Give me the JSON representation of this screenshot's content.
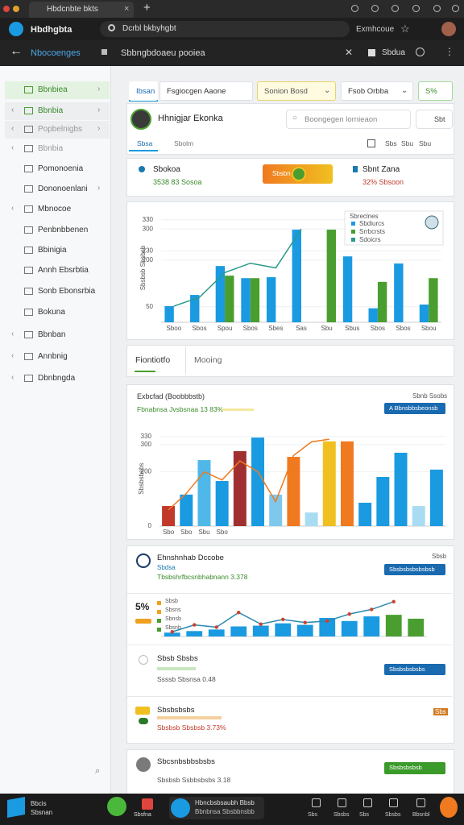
{
  "tab": {
    "title": "Hbdcnbte bkts"
  },
  "toolbar": {
    "app": "Hbdhgbta",
    "url": "Dcrbl bkbyhgbt",
    "profile": "Exmhcoue"
  },
  "header": {
    "title": "Nbocoenges",
    "breadcrumb": "Sbbngbdoaeu pooiea",
    "action": "Sbdua"
  },
  "sidebar": [
    "Bbnbiea",
    "Bbnbia",
    "Popbelnigbs",
    "Bbnbia",
    "Pomonoenia",
    "Dononoenlani",
    "Mbnocoe",
    "Penbnbbenen",
    "Bbinigia",
    "Annh Ebsrbtia",
    "Sonb Ebonsrbia",
    "Bokuna",
    "Bbnban",
    "Annbnig",
    "Dbnbngda"
  ],
  "filters": {
    "tab": "Ibsan",
    "view": "Fsgiocgen Aaone",
    "period": "Sonion Bosd",
    "range": "Fsob Orbba",
    "badge": "S%"
  },
  "profile": {
    "name": "Hhnigjar Ekonka",
    "search": "Boongegen lornieaon",
    "button": "Sbt",
    "tabs": [
      "Sbsa",
      "Sbolm"
    ],
    "tools": [
      "Sbs",
      "Sbu",
      "Sbu"
    ]
  },
  "kpis": [
    {
      "label": "Sbokoa",
      "detail": "3538 83 Sosoa",
      "button": "Sbsbn"
    },
    {
      "label": "Sbnt Zana",
      "detail": "32% Sbsoon"
    }
  ],
  "section_tabs": [
    "Fiontiotfo",
    "Mooing"
  ],
  "panels": [
    {
      "title": "Exbcfad (Boobbbstb)",
      "subtitle": "Fbnabnsa Jvsbsnaa 13 83%",
      "button": "A Bbnsbbsbeonsb",
      "corner": "Sbnb Ssobs"
    },
    {
      "title": "Ehnshnhab Dccobe",
      "subtitle": "Sbdsa",
      "detail": "Tbsbshrfbcsnbhabnann 3.378",
      "button": "Sbsbsbsbsbsbsb",
      "corner": "Sbsb",
      "big": "5%",
      "legend": [
        {
          "label": "Sbsb",
          "color": "#f0a020"
        },
        {
          "label": "Sbsns",
          "color": "#f0a020"
        },
        {
          "label": "Sbnsb",
          "color": "#4a9e2f"
        },
        {
          "label": "Sbsnb",
          "color": "#4a9e2f"
        }
      ]
    },
    {
      "title": "Sbsb Sbsbs",
      "detail": "Ssssb Sbsnsa 0.48",
      "button": "Sbsbsbsbsbs"
    },
    {
      "title": "Sbsbsbsbs",
      "detail": "Sbsbsb Sbsbsb 3.73%",
      "corner": "Sbs"
    },
    {
      "title": "Sbcsnbsbbsbsbs",
      "detail": "Sbsbsb Ssbbsbsbs 3.18",
      "button": "Sbsbsbsbsb"
    }
  ],
  "taskbar": {
    "start": "Bbcis Sbsnan",
    "apps": [
      "Sbsfna",
      "Hbncbsbsaubh Bbsb",
      "Bbnbnsa Sbsbbnsbb"
    ],
    "items": [
      "Sbs",
      "Sbsbs",
      "Sbs",
      "Sbsbs",
      "Bbsnbl"
    ]
  },
  "chart_data": [
    {
      "type": "bar",
      "categories": [
        "Sboo",
        "Sbos",
        "Spou",
        "Sbos",
        "Sbes",
        "Sas",
        "Sbu",
        "Sbus",
        "Sbos",
        "Sbos",
        "Sbou"
      ],
      "ylim": [
        0,
        350
      ],
      "yticks": [
        50,
        200,
        230,
        300,
        330
      ],
      "y_label": "Sbsbsb Sbsbsb",
      "legend": "top-right",
      "legend_title": "Sbreclnes",
      "series": [
        {
          "name": "Sbdiurcs",
          "color": "#1a9ae0",
          "values": [
            52,
            88,
            181,
            142,
            145,
            298,
            null,
            212,
            45,
            189,
            57
          ]
        },
        {
          "name": "Srrbcrsts",
          "color": "#4a9e2f",
          "values": [
            null,
            null,
            150,
            142,
            null,
            null,
            298,
            null,
            130,
            null,
            142
          ]
        },
        {
          "name": "Sdoicrs",
          "color": "#2a9a8a",
          "type": "line",
          "values": [
            52,
            80,
            160,
            190,
            175,
            300,
            null,
            null,
            null,
            null,
            null
          ]
        }
      ]
    },
    {
      "type": "bar",
      "categories": [
        "Sbo",
        "Sbo",
        "Sbu",
        "Sbo",
        null,
        null,
        null,
        null,
        null,
        null,
        null,
        null,
        null,
        null,
        null,
        null
      ],
      "ylim": [
        0,
        350
      ],
      "yticks": [
        0,
        200,
        300,
        330
      ],
      "y_label": "Sbsbsbsbs",
      "series": [
        {
          "name": "Sbsbsb",
          "values": [
            74,
            116,
            243,
            166,
            276,
            326,
            116,
            255,
            50,
            312,
            312,
            86,
            181,
            270,
            74,
            208
          ],
          "colors": [
            "#c0392b",
            "#1a9ae0",
            "#4fb8e8",
            "#1a9ae0",
            "#a03030",
            "#1a9ae0",
            "#7ec8ee",
            "#f07a20",
            "#a8dcf2",
            "#f0c020",
            "#f07a20",
            "#1a9ae0",
            "#1a9ae0",
            "#1a9ae0",
            "#a8dcf2",
            "#1a9ae0"
          ]
        },
        {
          "name": "Sbsbsbs",
          "color": "#f07a20",
          "type": "line",
          "values": [
            60,
            120,
            200,
            170,
            240,
            200,
            90,
            260,
            310,
            320,
            null,
            null,
            null,
            null,
            null,
            null
          ]
        }
      ]
    },
    {
      "type": "bar",
      "categories": [
        null,
        null,
        null,
        null,
        null,
        null,
        null,
        null,
        null,
        null,
        null,
        null
      ],
      "ylim": [
        0,
        100
      ],
      "series": [
        {
          "name": "Sbsbsbs",
          "values": [
            10,
            14,
            18,
            26,
            28,
            34,
            30,
            48,
            40,
            52,
            56,
            46
          ],
          "colors": [
            "#1a9ae0",
            "#1a9ae0",
            "#1a9ae0",
            "#1a9ae0",
            "#1a9ae0",
            "#1a9ae0",
            "#1a9ae0",
            "#1a9ae0",
            "#1a9ae0",
            "#1a9ae0",
            "#4a9e2f",
            "#4a9e2f"
          ]
        },
        {
          "name": "Sbsbsbsb",
          "color": "#2a8ab0",
          "type": "line",
          "dots": "#d0402a",
          "values": [
            12,
            30,
            24,
            62,
            32,
            44,
            36,
            40,
            58,
            70,
            90,
            null
          ]
        }
      ]
    }
  ]
}
